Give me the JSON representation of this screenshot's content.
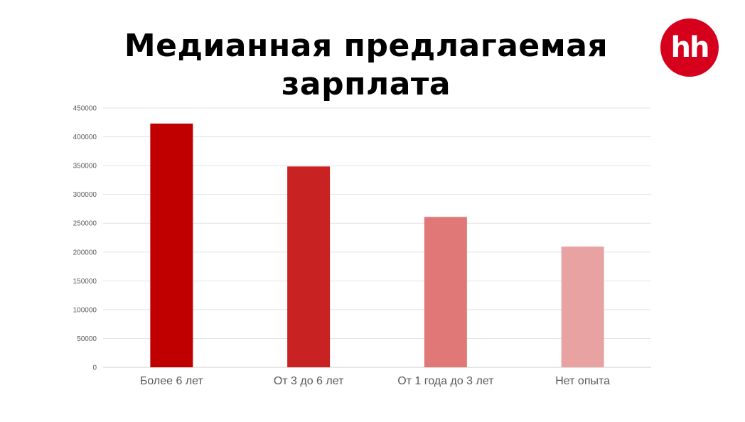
{
  "title": "Медианная предлагаемая зарплата",
  "logo": {
    "text": "hh",
    "color": "#d6001c"
  },
  "chart_data": {
    "type": "bar",
    "title": "Медианная предлагаемая зарплата",
    "categories": [
      "Более 6 лет",
      "От 3 до 6 лет",
      "От 1 года до 3 лет",
      "Нет опыта"
    ],
    "values": [
      423000,
      348500,
      261000,
      209500
    ],
    "bar_colors": [
      "#c00000",
      "#c82222",
      "#e07878",
      "#e8a2a2"
    ],
    "ylim": [
      0,
      450000
    ],
    "yticks": [
      "0",
      "50000",
      "100000",
      "150000",
      "200000",
      "250000",
      "300000",
      "350000",
      "400000",
      "450000"
    ],
    "grid": true,
    "xlabel": "",
    "ylabel": ""
  }
}
